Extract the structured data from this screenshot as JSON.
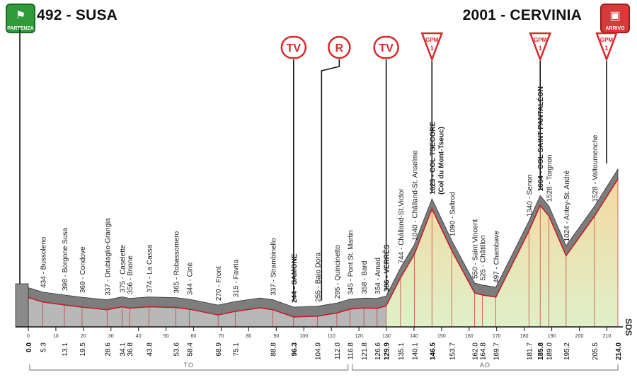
{
  "header": {
    "start": "492 - SUSA",
    "finish": "2001 - CERVINIA",
    "start_badge": "PARTENZA",
    "finish_badge": "ARRIVO"
  },
  "markers": {
    "tv": "TV",
    "r": "R",
    "gpm": "GPM",
    "gpm_cat": "1"
  },
  "colors": {
    "profile_fill_flat": "#b8b8b8",
    "profile_fill_climb": "#c8e0a0",
    "road_band": "#7d7d7d",
    "road_edge": "#c0202a",
    "marker_red": "#d42b2b"
  },
  "regions": [
    "TO",
    "AO"
  ],
  "side_label": "SDS",
  "chart_data": {
    "type": "area",
    "x_unit": "km",
    "xlim": [
      0,
      214
    ],
    "ylim": [
      300,
      2100
    ],
    "x_ticks": [
      0,
      10,
      20,
      30,
      40,
      50,
      60,
      70,
      80,
      90,
      100,
      110,
      120,
      130,
      140,
      150,
      160,
      170,
      180,
      190,
      200,
      210
    ],
    "profile": [
      [
        0,
        492
      ],
      [
        5.3,
        434
      ],
      [
        13.1,
        398
      ],
      [
        19.5,
        369
      ],
      [
        28.6,
        337
      ],
      [
        34.1,
        375
      ],
      [
        36.8,
        356
      ],
      [
        43.8,
        374
      ],
      [
        53.6,
        365
      ],
      [
        58.4,
        344
      ],
      [
        68.9,
        270
      ],
      [
        75.1,
        315
      ],
      [
        84,
        360
      ],
      [
        88.8,
        337
      ],
      [
        96.3,
        244
      ],
      [
        104.9,
        255
      ],
      [
        112.0,
        295
      ],
      [
        116.8,
        345
      ],
      [
        121.8,
        358
      ],
      [
        126.6,
        354
      ],
      [
        129.9,
        386
      ],
      [
        135.1,
        744
      ],
      [
        140.1,
        1040
      ],
      [
        146.5,
        1623
      ],
      [
        153.7,
        1090
      ],
      [
        162.0,
        550
      ],
      [
        164.8,
        525
      ],
      [
        169.7,
        497
      ],
      [
        181.7,
        1340
      ],
      [
        185.8,
        1664
      ],
      [
        189.0,
        1528
      ],
      [
        195.2,
        1024
      ],
      [
        205.5,
        1528
      ],
      [
        214.0,
        2001
      ]
    ],
    "km_labels": [
      {
        "km": 0.0,
        "label": "0.0",
        "bold": true
      },
      {
        "km": 5.3,
        "label": "5.3"
      },
      {
        "km": 13.1,
        "label": "13.1"
      },
      {
        "km": 19.5,
        "label": "19.5"
      },
      {
        "km": 28.6,
        "label": "28.6"
      },
      {
        "km": 34.1,
        "label": "34.1"
      },
      {
        "km": 36.8,
        "label": "36.8"
      },
      {
        "km": 43.8,
        "label": "43.8"
      },
      {
        "km": 53.6,
        "label": "53.6"
      },
      {
        "km": 58.4,
        "label": "58.4"
      },
      {
        "km": 68.9,
        "label": "68.9"
      },
      {
        "km": 75.1,
        "label": "75.1"
      },
      {
        "km": 88.8,
        "label": "88.8"
      },
      {
        "km": 96.3,
        "label": "96.3",
        "bold": true
      },
      {
        "km": 104.9,
        "label": "104.9"
      },
      {
        "km": 112.0,
        "label": "112.0"
      },
      {
        "km": 116.8,
        "label": "116.8"
      },
      {
        "km": 121.8,
        "label": "121.8"
      },
      {
        "km": 126.6,
        "label": "126.6"
      },
      {
        "km": 129.9,
        "label": "129.9",
        "bold": true
      },
      {
        "km": 135.1,
        "label": "135.1"
      },
      {
        "km": 140.1,
        "label": "140.1"
      },
      {
        "km": 146.5,
        "label": "146.5",
        "bold": true
      },
      {
        "km": 153.7,
        "label": "153.7"
      },
      {
        "km": 162.0,
        "label": "162.0"
      },
      {
        "km": 164.8,
        "label": "164.8"
      },
      {
        "km": 169.7,
        "label": "169.7"
      },
      {
        "km": 181.7,
        "label": "181.7"
      },
      {
        "km": 185.8,
        "label": "185.8",
        "bold": true
      },
      {
        "km": 189.0,
        "label": "189.0"
      },
      {
        "km": 195.2,
        "label": "195.2"
      },
      {
        "km": 205.5,
        "label": "205.5"
      },
      {
        "km": 214.0,
        "label": "214.0",
        "bold": true
      }
    ],
    "places": [
      {
        "km": 5.3,
        "label": "434 - Bussoleno"
      },
      {
        "km": 13.1,
        "label": "398 - Borgone Susa"
      },
      {
        "km": 19.5,
        "label": "369 - Condove"
      },
      {
        "km": 28.6,
        "label": "337 - Drubiaglio-Grangia"
      },
      {
        "km": 34.1,
        "label": "375 - Caselette"
      },
      {
        "km": 36.8,
        "label": "356 - Brione"
      },
      {
        "km": 43.8,
        "label": "374 - La Cassa"
      },
      {
        "km": 53.6,
        "label": "365 - Robassomero"
      },
      {
        "km": 58.4,
        "label": "344 - Ciriè"
      },
      {
        "km": 68.9,
        "label": "270 - Front"
      },
      {
        "km": 75.1,
        "label": "315 - Favria"
      },
      {
        "km": 88.8,
        "label": "337 - Strambinello"
      },
      {
        "km": 96.3,
        "label": "244 - SAMONE",
        "bold": true
      },
      {
        "km": 104.9,
        "label": "255 - Baio Dora"
      },
      {
        "km": 112.0,
        "label": "295 - Quincinetto"
      },
      {
        "km": 116.8,
        "label": "345 - Pont St. Martin"
      },
      {
        "km": 121.8,
        "label": "358 - Bard"
      },
      {
        "km": 126.6,
        "label": "354 - Arnad"
      },
      {
        "km": 129.9,
        "label": "386 - VERRÈS",
        "bold": true
      },
      {
        "km": 135.1,
        "label": "744 - Châlland-St.Victor"
      },
      {
        "km": 140.1,
        "label": "1040 - Châlland-St. Anselme"
      },
      {
        "km": 146.5,
        "label": "1623 - COL TSECORE",
        "bold": true,
        "sub": "(Col du Mont-Tseuc)"
      },
      {
        "km": 153.7,
        "label": "1090 - Saltrod"
      },
      {
        "km": 162.0,
        "label": "550 - Saint Vincent"
      },
      {
        "km": 164.8,
        "label": "525 - Châtillon"
      },
      {
        "km": 169.7,
        "label": "497 - Chambave"
      },
      {
        "km": 181.7,
        "label": "1340 - Senon"
      },
      {
        "km": 185.8,
        "label": "1664 - COL SAINT PANTALÉON",
        "bold": true
      },
      {
        "km": 189.0,
        "label": "1528 - Torgnon"
      },
      {
        "km": 195.2,
        "label": "1024 - Antey-St. André"
      },
      {
        "km": 205.5,
        "label": "1528 - Valtournenche"
      }
    ],
    "markers": [
      {
        "km": 96.3,
        "type": "TV"
      },
      {
        "km": 104.9,
        "type": "R"
      },
      {
        "km": 129.9,
        "type": "TV"
      },
      {
        "km": 146.5,
        "type": "GPM",
        "cat": "1"
      },
      {
        "km": 185.8,
        "type": "GPM",
        "cat": "1"
      },
      {
        "km": 214.0,
        "type": "GPM",
        "cat": "1"
      }
    ],
    "regions": [
      {
        "label": "TO",
        "from": 0,
        "to": 116.8
      },
      {
        "label": "AO",
        "from": 116.8,
        "to": 214
      }
    ]
  }
}
